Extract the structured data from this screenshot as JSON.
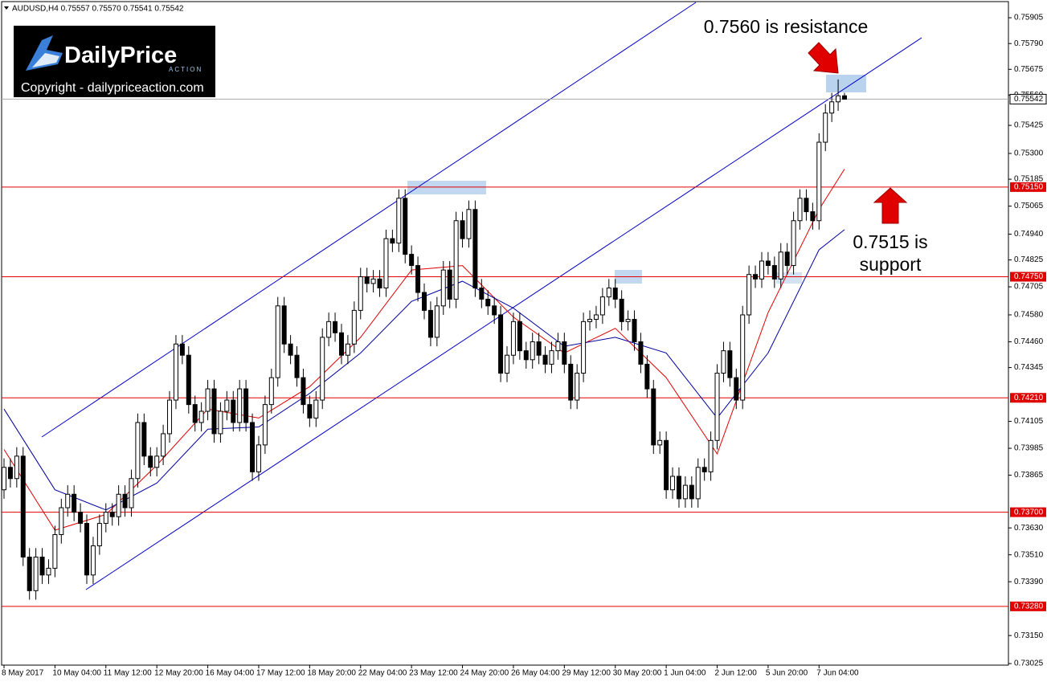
{
  "logo": {
    "brand": "DailyPrice",
    "sub": "ACTION",
    "copyright": "Copyright - dailypriceaction.com"
  },
  "chart_data": {
    "type": "candlestick",
    "title": "AUDUSD,H4 0.75557 0.75570 0.75541 0.75542",
    "annotations": [
      "0.7560 is resistance",
      "0.7515 is",
      "support"
    ],
    "categories": [
      "8 May 2017",
      null,
      null,
      null,
      null,
      null,
      null,
      null,
      "10 May 04:00",
      null,
      null,
      null,
      null,
      null,
      null,
      null,
      "11 May 12:00",
      null,
      null,
      null,
      null,
      null,
      null,
      null,
      "12 May 20:00",
      null,
      null,
      null,
      null,
      null,
      null,
      null,
      "16 May 04:00",
      null,
      null,
      null,
      null,
      null,
      null,
      null,
      "17 May 12:00",
      null,
      null,
      null,
      null,
      null,
      null,
      null,
      "18 May 20:00",
      null,
      null,
      null,
      null,
      null,
      null,
      null,
      "22 May 04:00",
      null,
      null,
      null,
      null,
      null,
      null,
      null,
      "23 May 12:00",
      null,
      null,
      null,
      null,
      null,
      null,
      null,
      "24 May 20:00",
      null,
      null,
      null,
      null,
      null,
      null,
      null,
      "26 May 04:00",
      null,
      null,
      null,
      null,
      null,
      null,
      null,
      "29 May 12:00",
      null,
      null,
      null,
      null,
      null,
      null,
      null,
      "30 May 20:00",
      null,
      null,
      null,
      null,
      null,
      null,
      null,
      "1 Jun 04:00",
      null,
      null,
      null,
      null,
      null,
      null,
      null,
      "2 Jun 12:00",
      null,
      null,
      null,
      null,
      null,
      null,
      null,
      "5 Jun 20:00",
      null,
      null,
      null,
      null,
      null,
      null,
      null,
      "7 Jun 04:00",
      null,
      null,
      null,
      null
    ],
    "ohlc": [
      [
        0.738,
        0.7394,
        0.7376,
        0.739
      ],
      [
        0.739,
        0.7394,
        0.7381,
        0.7385
      ],
      [
        0.7385,
        0.7399,
        0.7381,
        0.7395
      ],
      [
        0.7395,
        0.7399,
        0.7346,
        0.735
      ],
      [
        0.735,
        0.7354,
        0.7331,
        0.7335
      ],
      [
        0.7335,
        0.7354,
        0.7331,
        0.735
      ],
      [
        0.735,
        0.7354,
        0.7338,
        0.7342
      ],
      [
        0.7342,
        0.7349,
        0.7338,
        0.7345
      ],
      [
        0.7345,
        0.7364,
        0.7341,
        0.736
      ],
      [
        0.736,
        0.7376,
        0.7356,
        0.7372
      ],
      [
        0.7372,
        0.7382,
        0.7368,
        0.7378
      ],
      [
        0.7378,
        0.7382,
        0.7366,
        0.737
      ],
      [
        0.737,
        0.7374,
        0.7361,
        0.7365
      ],
      [
        0.7365,
        0.7369,
        0.7338,
        0.7342
      ],
      [
        0.7342,
        0.7359,
        0.7338,
        0.7355
      ],
      [
        0.7355,
        0.7369,
        0.7351,
        0.7365
      ],
      [
        0.7365,
        0.7374,
        0.7361,
        0.737
      ],
      [
        0.737,
        0.7374,
        0.7364,
        0.7368
      ],
      [
        0.7368,
        0.7382,
        0.7364,
        0.7378
      ],
      [
        0.7378,
        0.7382,
        0.7368,
        0.7372
      ],
      [
        0.7372,
        0.7389,
        0.7368,
        0.7385
      ],
      [
        0.7385,
        0.7414,
        0.7381,
        0.741
      ],
      [
        0.741,
        0.7414,
        0.7391,
        0.7395
      ],
      [
        0.7395,
        0.7399,
        0.7386,
        0.739
      ],
      [
        0.739,
        0.7399,
        0.7386,
        0.7395
      ],
      [
        0.7395,
        0.7409,
        0.7391,
        0.7405
      ],
      [
        0.7405,
        0.7424,
        0.7401,
        0.742
      ],
      [
        0.742,
        0.7449,
        0.7416,
        0.7445
      ],
      [
        0.7445,
        0.7449,
        0.7436,
        0.744
      ],
      [
        0.744,
        0.7444,
        0.7414,
        0.7418
      ],
      [
        0.7418,
        0.7422,
        0.7406,
        0.741
      ],
      [
        0.741,
        0.7419,
        0.7406,
        0.7415
      ],
      [
        0.7415,
        0.7429,
        0.7411,
        0.7425
      ],
      [
        0.7425,
        0.7429,
        0.7401,
        0.7405
      ],
      [
        0.7405,
        0.7419,
        0.7401,
        0.7415
      ],
      [
        0.7415,
        0.7424,
        0.7411,
        0.742
      ],
      [
        0.742,
        0.7424,
        0.7406,
        0.741
      ],
      [
        0.741,
        0.7429,
        0.7406,
        0.7425
      ],
      [
        0.7425,
        0.7429,
        0.7406,
        0.741
      ],
      [
        0.741,
        0.7414,
        0.7384,
        0.7388
      ],
      [
        0.7388,
        0.7404,
        0.7384,
        0.74
      ],
      [
        0.74,
        0.7422,
        0.7396,
        0.7418
      ],
      [
        0.7418,
        0.7434,
        0.7414,
        0.743
      ],
      [
        0.743,
        0.7466,
        0.7426,
        0.7462
      ],
      [
        0.7462,
        0.7466,
        0.7441,
        0.7445
      ],
      [
        0.7445,
        0.7449,
        0.7436,
        0.744
      ],
      [
        0.744,
        0.7444,
        0.7426,
        0.743
      ],
      [
        0.743,
        0.7434,
        0.7414,
        0.7418
      ],
      [
        0.7418,
        0.7422,
        0.7408,
        0.7412
      ],
      [
        0.7412,
        0.7424,
        0.7408,
        0.742
      ],
      [
        0.742,
        0.7452,
        0.7416,
        0.7448
      ],
      [
        0.7448,
        0.7459,
        0.7444,
        0.7455
      ],
      [
        0.7455,
        0.7459,
        0.7446,
        0.745
      ],
      [
        0.745,
        0.7454,
        0.7436,
        0.744
      ],
      [
        0.744,
        0.7449,
        0.7436,
        0.7445
      ],
      [
        0.7445,
        0.7464,
        0.7441,
        0.746
      ],
      [
        0.746,
        0.7479,
        0.7456,
        0.7475
      ],
      [
        0.7475,
        0.7479,
        0.7468,
        0.7472
      ],
      [
        0.7472,
        0.7478,
        0.7468,
        0.7474
      ],
      [
        0.7474,
        0.7478,
        0.7466,
        0.747
      ],
      [
        0.747,
        0.7496,
        0.7466,
        0.7492
      ],
      [
        0.7492,
        0.7496,
        0.7486,
        0.749
      ],
      [
        0.749,
        0.7514,
        0.7486,
        0.751
      ],
      [
        0.751,
        0.7514,
        0.7481,
        0.7485
      ],
      [
        0.7485,
        0.7489,
        0.7476,
        0.748
      ],
      [
        0.748,
        0.7484,
        0.7464,
        0.7468
      ],
      [
        0.7468,
        0.7472,
        0.7456,
        0.746
      ],
      [
        0.746,
        0.7464,
        0.7444,
        0.7448
      ],
      [
        0.7448,
        0.7466,
        0.7444,
        0.7462
      ],
      [
        0.7462,
        0.7482,
        0.7458,
        0.7478
      ],
      [
        0.7478,
        0.7482,
        0.7461,
        0.7465
      ],
      [
        0.7465,
        0.7504,
        0.7461,
        0.75
      ],
      [
        0.75,
        0.7504,
        0.7488,
        0.7492
      ],
      [
        0.7492,
        0.7509,
        0.7488,
        0.7505
      ],
      [
        0.7505,
        0.7509,
        0.7466,
        0.747
      ],
      [
        0.747,
        0.7474,
        0.7461,
        0.7465
      ],
      [
        0.7465,
        0.7469,
        0.7458,
        0.7462
      ],
      [
        0.7462,
        0.7466,
        0.7454,
        0.7458
      ],
      [
        0.7458,
        0.7462,
        0.7428,
        0.7432
      ],
      [
        0.7432,
        0.7444,
        0.7428,
        0.744
      ],
      [
        0.744,
        0.7459,
        0.7436,
        0.7455
      ],
      [
        0.7455,
        0.7459,
        0.7438,
        0.7442
      ],
      [
        0.7442,
        0.7446,
        0.7434,
        0.7438
      ],
      [
        0.7438,
        0.745,
        0.7434,
        0.7446
      ],
      [
        0.7446,
        0.745,
        0.7436,
        0.744
      ],
      [
        0.744,
        0.7444,
        0.7432,
        0.7436
      ],
      [
        0.7436,
        0.7446,
        0.7432,
        0.7442
      ],
      [
        0.7442,
        0.745,
        0.7438,
        0.7446
      ],
      [
        0.7446,
        0.745,
        0.7432,
        0.7436
      ],
      [
        0.7436,
        0.744,
        0.7416,
        0.742
      ],
      [
        0.742,
        0.7436,
        0.7416,
        0.7432
      ],
      [
        0.7432,
        0.7459,
        0.7428,
        0.7455
      ],
      [
        0.7455,
        0.746,
        0.7451,
        0.7456
      ],
      [
        0.7456,
        0.7462,
        0.7452,
        0.7458
      ],
      [
        0.7458,
        0.747,
        0.7454,
        0.7466
      ],
      [
        0.7466,
        0.7474,
        0.7462,
        0.747
      ],
      [
        0.747,
        0.7474,
        0.7461,
        0.7465
      ],
      [
        0.7465,
        0.7469,
        0.7451,
        0.7455
      ],
      [
        0.7455,
        0.746,
        0.7451,
        0.7456
      ],
      [
        0.7456,
        0.746,
        0.7442,
        0.7446
      ],
      [
        0.7446,
        0.745,
        0.7432,
        0.7436
      ],
      [
        0.7436,
        0.744,
        0.7421,
        0.7425
      ],
      [
        0.7425,
        0.7429,
        0.7396,
        0.74
      ],
      [
        0.74,
        0.7406,
        0.7396,
        0.7402
      ],
      [
        0.7402,
        0.7406,
        0.7376,
        0.738
      ],
      [
        0.738,
        0.739,
        0.7376,
        0.7386
      ],
      [
        0.7386,
        0.739,
        0.7372,
        0.7376
      ],
      [
        0.7376,
        0.7386,
        0.7372,
        0.7382
      ],
      [
        0.7382,
        0.7386,
        0.7372,
        0.7376
      ],
      [
        0.7376,
        0.7394,
        0.7372,
        0.739
      ],
      [
        0.739,
        0.7394,
        0.7384,
        0.7388
      ],
      [
        0.7388,
        0.7406,
        0.7384,
        0.7402
      ],
      [
        0.7402,
        0.7436,
        0.7398,
        0.7432
      ],
      [
        0.7432,
        0.7446,
        0.7428,
        0.7442
      ],
      [
        0.7442,
        0.7446,
        0.7426,
        0.743
      ],
      [
        0.743,
        0.7434,
        0.7416,
        0.742
      ],
      [
        0.742,
        0.7462,
        0.7416,
        0.7458
      ],
      [
        0.7458,
        0.748,
        0.7454,
        0.7476
      ],
      [
        0.7476,
        0.748,
        0.747,
        0.7474
      ],
      [
        0.7474,
        0.7486,
        0.747,
        0.7482
      ],
      [
        0.7482,
        0.7486,
        0.7476,
        0.748
      ],
      [
        0.748,
        0.7484,
        0.747,
        0.7474
      ],
      [
        0.7474,
        0.749,
        0.747,
        0.7486
      ],
      [
        0.7486,
        0.749,
        0.7476,
        0.748
      ],
      [
        0.748,
        0.7504,
        0.7476,
        0.75
      ],
      [
        0.75,
        0.7514,
        0.7496,
        0.751
      ],
      [
        0.751,
        0.7514,
        0.75,
        0.7504
      ],
      [
        0.7504,
        0.7508,
        0.7496,
        0.75
      ],
      [
        0.75,
        0.7539,
        0.7496,
        0.7535
      ],
      [
        0.7535,
        0.7552,
        0.7531,
        0.7548
      ],
      [
        0.7548,
        0.7557,
        0.7544,
        0.7553
      ],
      [
        0.7553,
        0.7563,
        0.7549,
        0.75557
      ],
      [
        0.75557,
        0.7557,
        0.75541,
        0.75542
      ]
    ],
    "overlays": [
      {
        "color": "#e00000",
        "x": [
          0,
          8,
          16,
          24,
          32,
          40,
          48,
          56,
          64,
          72,
          80,
          88,
          96,
          104,
          112,
          120,
          128,
          132
        ],
        "values": [
          0.7398,
          0.7362,
          0.7369,
          0.7391,
          0.7416,
          0.7412,
          0.7426,
          0.7448,
          0.7478,
          0.748,
          0.7457,
          0.7441,
          0.7452,
          0.743,
          0.7396,
          0.7459,
          0.7505,
          0.7523
        ]
      },
      {
        "color": "#0000a0",
        "x": [
          0,
          8,
          16,
          24,
          32,
          40,
          48,
          56,
          64,
          72,
          80,
          88,
          96,
          104,
          112,
          120,
          128,
          132
        ],
        "values": [
          0.7416,
          0.738,
          0.7371,
          0.7383,
          0.7407,
          0.7408,
          0.7423,
          0.7441,
          0.7464,
          0.7473,
          0.7461,
          0.7444,
          0.7448,
          0.7441,
          0.7412,
          0.7441,
          0.7487,
          0.7496
        ]
      }
    ],
    "levels": [
      {
        "value": 0.7515,
        "label": "0.75150"
      },
      {
        "value": 0.7475,
        "label": "0.74750"
      },
      {
        "value": 0.7421,
        "label": "0.74210"
      },
      {
        "value": 0.737,
        "label": "0.73700"
      },
      {
        "value": 0.7328,
        "label": "0.73280"
      }
    ],
    "level_color": "#e00000",
    "price_line": 0.75542,
    "ylim": [
      0.73018,
      0.75977
    ],
    "yticks": [
      0.75905,
      {
        "value": 0.7579,
        "label": "0.75790"
      },
      0.75675,
      {
        "value": 0.7556,
        "label": "0.75560"
      },
      0.75425,
      {
        "value": 0.753,
        "label": "0.75300"
      },
      0.75185,
      0.75065,
      {
        "value": 0.7494,
        "label": "0.74940"
      },
      0.74825,
      0.74705,
      {
        "value": 0.7458,
        "label": "0.74580"
      },
      {
        "value": 0.7446,
        "label": "0.74460"
      },
      0.74345,
      0.74105,
      0.73985,
      0.73865,
      {
        "value": 0.7363,
        "label": "0.73630"
      },
      {
        "value": 0.7351,
        "label": "0.73510"
      },
      {
        "value": 0.7339,
        "label": "0.73390"
      },
      {
        "value": 0.7315,
        "label": "0.73150"
      },
      0.73025
    ]
  }
}
